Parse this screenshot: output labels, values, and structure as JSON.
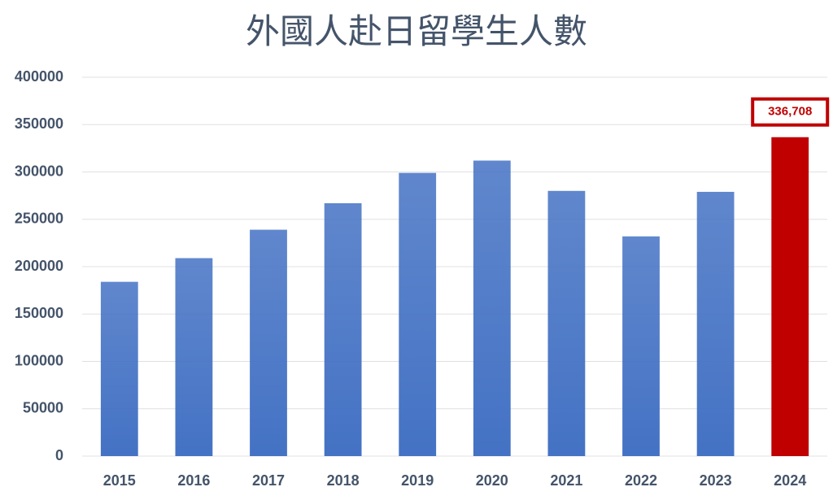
{
  "chart_data": {
    "type": "bar",
    "title": "外國人赴日留學生人數",
    "categories": [
      "2015",
      "2016",
      "2017",
      "2018",
      "2019",
      "2020",
      "2021",
      "2022",
      "2023",
      "2024"
    ],
    "values": [
      184000,
      209000,
      239000,
      267000,
      299000,
      312000,
      280000,
      232000,
      279000,
      336708
    ],
    "value_labels": [
      null,
      null,
      null,
      null,
      null,
      null,
      null,
      null,
      null,
      "336,708"
    ],
    "colors": [
      "#4472c4",
      "#4472c4",
      "#4472c4",
      "#4472c4",
      "#4472c4",
      "#4472c4",
      "#4472c4",
      "#4472c4",
      "#4472c4",
      "#c00000"
    ],
    "ylim": [
      0,
      400000
    ],
    "yticks": [
      0,
      50000,
      100000,
      150000,
      200000,
      250000,
      300000,
      350000,
      400000
    ],
    "grid": true
  }
}
